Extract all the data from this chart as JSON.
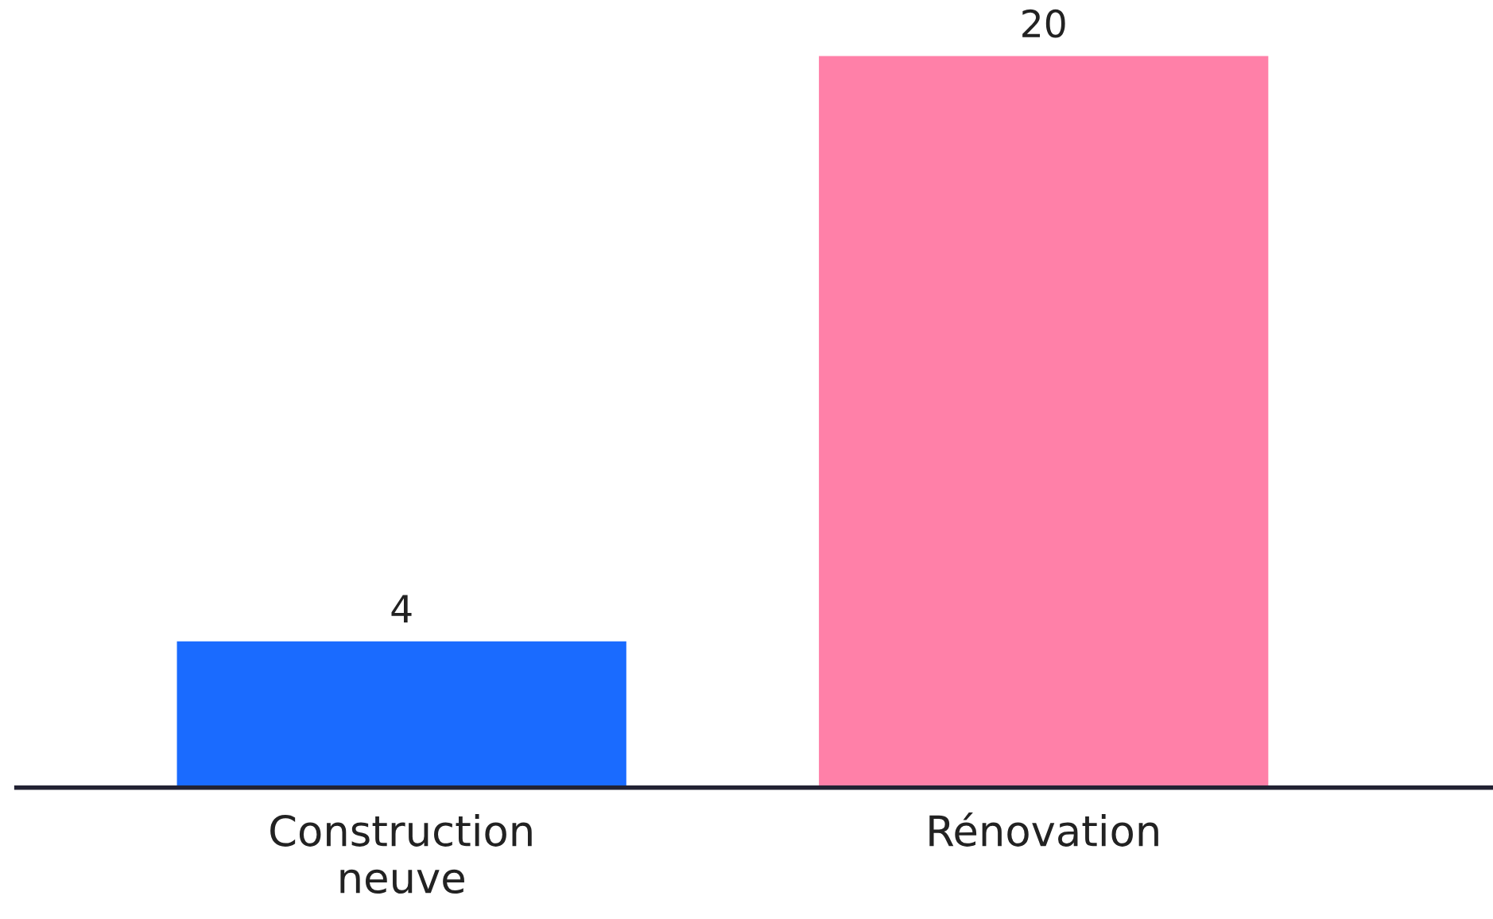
{
  "chart_data": {
    "type": "bar",
    "categories": [
      "Construction\nneuve",
      "Rénovation"
    ],
    "values": [
      4,
      20
    ],
    "colors": [
      "#1a6bff",
      "#ff80a8"
    ],
    "data_labels": true,
    "grid": false,
    "legend": false
  }
}
